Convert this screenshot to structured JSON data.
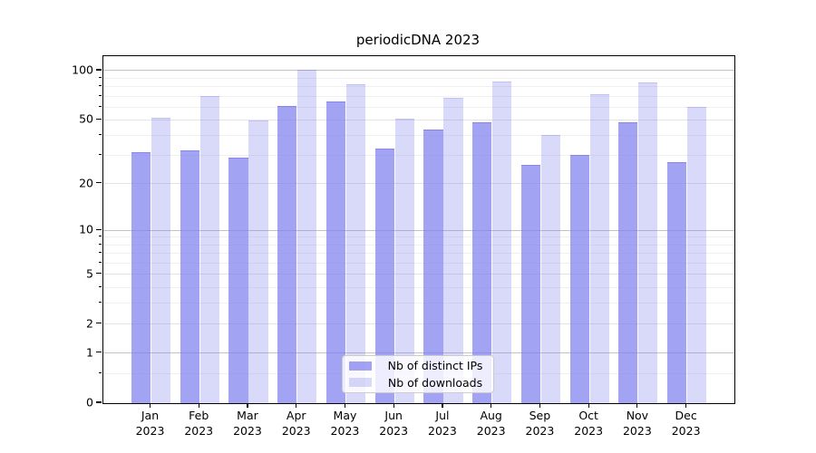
{
  "title": "periodicDNA 2023",
  "legend": {
    "items": [
      {
        "label": "Nb of distinct IPs",
        "color": "rgba(128,128,238,0.72)"
      },
      {
        "label": "Nb of downloads",
        "color": "rgba(128,128,238,0.30)"
      }
    ],
    "position": "lower center"
  },
  "colors": {
    "bar_base": "#8080ee",
    "bar_ips_rendered": "#a3a3f0",
    "bar_downloads_rendered": "#dadaf8",
    "grid_power_of_ten": "#c3c3c3",
    "grid_major": "#e3e3e3",
    "grid_minor": "#f0f0f0",
    "axis": "#000000",
    "background": "#ffffff"
  },
  "chart_data": {
    "type": "bar",
    "title": "periodicDNA 2023",
    "categories": [
      "Jan 2023",
      "Feb 2023",
      "Mar 2023",
      "Apr 2023",
      "May 2023",
      "Jun 2023",
      "Jul 2023",
      "Aug 2023",
      "Sep 2023",
      "Oct 2023",
      "Nov 2023",
      "Dec 2023"
    ],
    "series": [
      {
        "name": "Nb of distinct IPs",
        "values": [
          31,
          32,
          29,
          60,
          64,
          33,
          43,
          48,
          26,
          30,
          48,
          27
        ]
      },
      {
        "name": "Nb of downloads",
        "values": [
          51,
          69,
          49,
          100,
          82,
          50,
          67,
          85,
          40,
          71,
          84,
          59
        ]
      }
    ],
    "xlabel": "",
    "ylabel": "",
    "yscale": "log1p",
    "ylim": [
      0,
      122
    ],
    "y_major_ticks": [
      0,
      1,
      2,
      5,
      10,
      20,
      50,
      100
    ],
    "y_power_ticks": [
      1,
      10,
      100
    ],
    "y_minor_ticks": [
      0.5,
      3,
      4,
      6,
      7,
      8,
      9,
      30,
      40,
      60,
      70,
      80,
      90
    ],
    "grid": true,
    "legend_position": "lower center"
  }
}
